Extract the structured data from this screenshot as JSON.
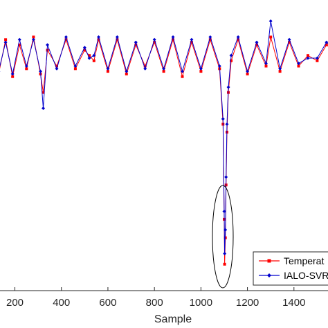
{
  "chart_data": {
    "type": "line",
    "xlabel": "Sample",
    "ylabel": "",
    "title": "",
    "xlim": [
      130,
      1600
    ],
    "ylim": [
      -0.05,
      1.05
    ],
    "x_ticks": [
      200,
      400,
      600,
      800,
      1000,
      1200,
      1400
    ],
    "x_tick_labels": [
      "200",
      "400",
      "600",
      "800",
      "1000",
      "1200",
      "1400"
    ],
    "grid": false,
    "legend_position": "bottom-right",
    "series": [
      {
        "name": "Temperat",
        "color": "#ff0000",
        "marker": "square",
        "x": [
          130,
          160,
          190,
          220,
          250,
          280,
          310,
          322,
          340,
          380,
          420,
          460,
          500,
          520,
          540,
          560,
          600,
          640,
          680,
          720,
          760,
          800,
          840,
          880,
          920,
          960,
          1000,
          1040,
          1080,
          1095,
          1100,
          1102,
          1105,
          1108,
          1112,
          1118,
          1130,
          1160,
          1200,
          1240,
          1280,
          1300,
          1340,
          1380,
          1420,
          1460,
          1500,
          1540,
          1600
        ],
        "values": [
          0.77,
          0.9,
          0.76,
          0.88,
          0.79,
          0.91,
          0.77,
          0.7,
          0.86,
          0.8,
          0.9,
          0.79,
          0.86,
          0.84,
          0.82,
          0.9,
          0.78,
          0.9,
          0.77,
          0.88,
          0.8,
          0.89,
          0.78,
          0.9,
          0.76,
          0.89,
          0.78,
          0.9,
          0.79,
          0.58,
          0.22,
          0.05,
          0.15,
          0.35,
          0.55,
          0.7,
          0.82,
          0.9,
          0.77,
          0.88,
          0.8,
          0.91,
          0.78,
          0.89,
          0.8,
          0.84,
          0.82,
          0.88,
          0.84
        ]
      },
      {
        "name": "IALO-SVR",
        "color": "#0000cd",
        "marker": "diamond",
        "x": [
          130,
          160,
          190,
          220,
          250,
          280,
          310,
          322,
          340,
          380,
          420,
          460,
          500,
          520,
          540,
          560,
          600,
          640,
          680,
          720,
          760,
          800,
          840,
          880,
          920,
          960,
          1000,
          1040,
          1080,
          1095,
          1100,
          1102,
          1105,
          1108,
          1112,
          1118,
          1130,
          1160,
          1200,
          1240,
          1280,
          1300,
          1340,
          1380,
          1420,
          1460,
          1500,
          1540,
          1600
        ],
        "values": [
          0.78,
          0.89,
          0.77,
          0.9,
          0.8,
          0.9,
          0.78,
          0.64,
          0.88,
          0.79,
          0.91,
          0.8,
          0.87,
          0.83,
          0.84,
          0.91,
          0.79,
          0.91,
          0.78,
          0.89,
          0.79,
          0.9,
          0.79,
          0.91,
          0.78,
          0.9,
          0.79,
          0.91,
          0.8,
          0.6,
          0.25,
          0.09,
          0.18,
          0.38,
          0.58,
          0.72,
          0.84,
          0.91,
          0.78,
          0.89,
          0.81,
          0.97,
          0.79,
          0.9,
          0.81,
          0.83,
          0.83,
          0.89,
          0.85
        ]
      }
    ]
  }
}
